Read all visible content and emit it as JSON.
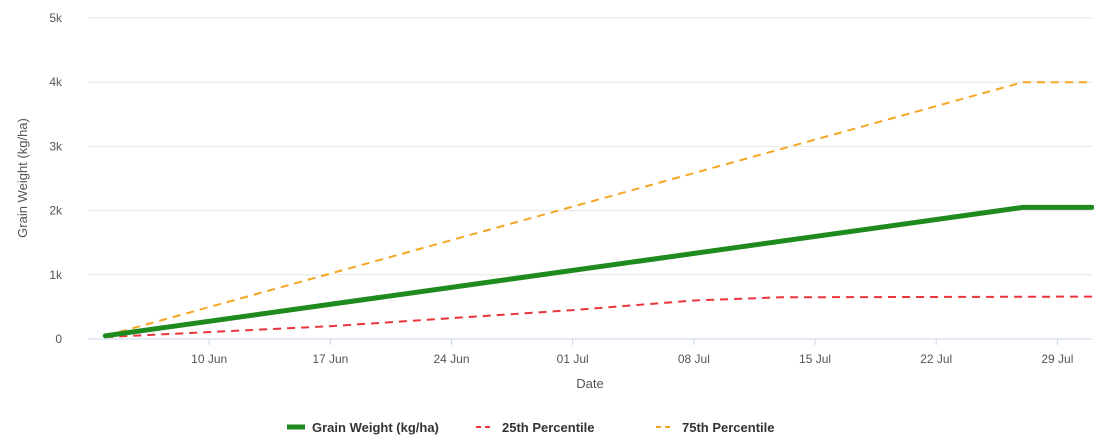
{
  "chart_data": {
    "type": "line",
    "title": "",
    "xlabel": "Date",
    "ylabel": "Grain Weight (kg/ha)",
    "x_ticks": [
      "10 Jun",
      "17 Jun",
      "24 Jun",
      "01 Jul",
      "08 Jul",
      "15 Jul",
      "22 Jul",
      "29 Jul"
    ],
    "y_ticks": [
      "0",
      "1k",
      "2k",
      "3k",
      "4k",
      "5k"
    ],
    "ylim": [
      0,
      5000
    ],
    "xlim": [
      "2023-06-03",
      "2023-07-31"
    ],
    "grid": "horizontal",
    "legend_position": "bottom-center",
    "series": [
      {
        "name": "Grain Weight (kg/ha)",
        "color": "#1f8b1f",
        "style": "solid",
        "points": [
          [
            "2023-06-04",
            50
          ],
          [
            "2023-07-27",
            2050
          ],
          [
            "2023-07-31",
            2050
          ]
        ]
      },
      {
        "name": "25th Percentile",
        "color": "#e8343a",
        "style": "dashed",
        "points": [
          [
            "2023-06-04",
            30
          ],
          [
            "2023-06-17",
            200
          ],
          [
            "2023-07-01",
            450
          ],
          [
            "2023-07-08",
            600
          ],
          [
            "2023-07-13",
            650
          ],
          [
            "2023-07-31",
            660
          ]
        ]
      },
      {
        "name": "75th Percentile",
        "color": "#f5a623",
        "style": "dashed",
        "points": [
          [
            "2023-06-04",
            50
          ],
          [
            "2023-07-27",
            4000
          ],
          [
            "2023-07-31",
            4000
          ]
        ]
      }
    ]
  }
}
